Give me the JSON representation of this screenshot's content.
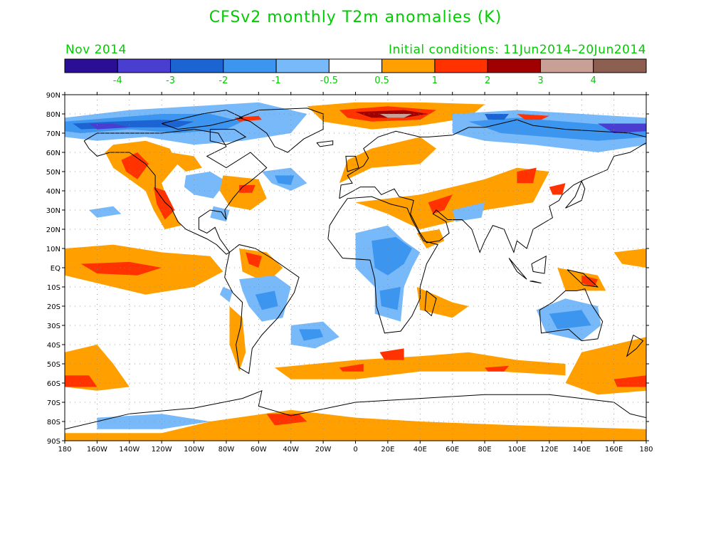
{
  "title": "CFSv2 monthly T2m anomalies (K)",
  "month": "Nov 2014",
  "initial_conditions": "Initial conditions: 11Jun2014–20Jun2014",
  "text_color": "#00cc00",
  "legend": {
    "colors": [
      "#2a0f96",
      "#4a3ed0",
      "#1c64d2",
      "#3c96f0",
      "#78b9fa",
      "#ffffff",
      "#ffa000",
      "#ff3200",
      "#a00000",
      "#c8a096",
      "#8c5f50"
    ],
    "labels": [
      "-4",
      "-3",
      "-2",
      "-1",
      "-0.5",
      "0.5",
      "1",
      "2",
      "3",
      "4"
    ]
  },
  "map": {
    "lat_labels": [
      "90N",
      "80N",
      "70N",
      "60N",
      "50N",
      "40N",
      "30N",
      "20N",
      "10N",
      "EQ",
      "10S",
      "20S",
      "30S",
      "40S",
      "50S",
      "60S",
      "70S",
      "80S",
      "90S"
    ],
    "lon_labels": [
      "180",
      "160W",
      "140W",
      "120W",
      "100W",
      "80W",
      "60W",
      "40W",
      "20W",
      "0",
      "20E",
      "40E",
      "60E",
      "80E",
      "100E",
      "120E",
      "140E",
      "160E",
      "180"
    ]
  }
}
